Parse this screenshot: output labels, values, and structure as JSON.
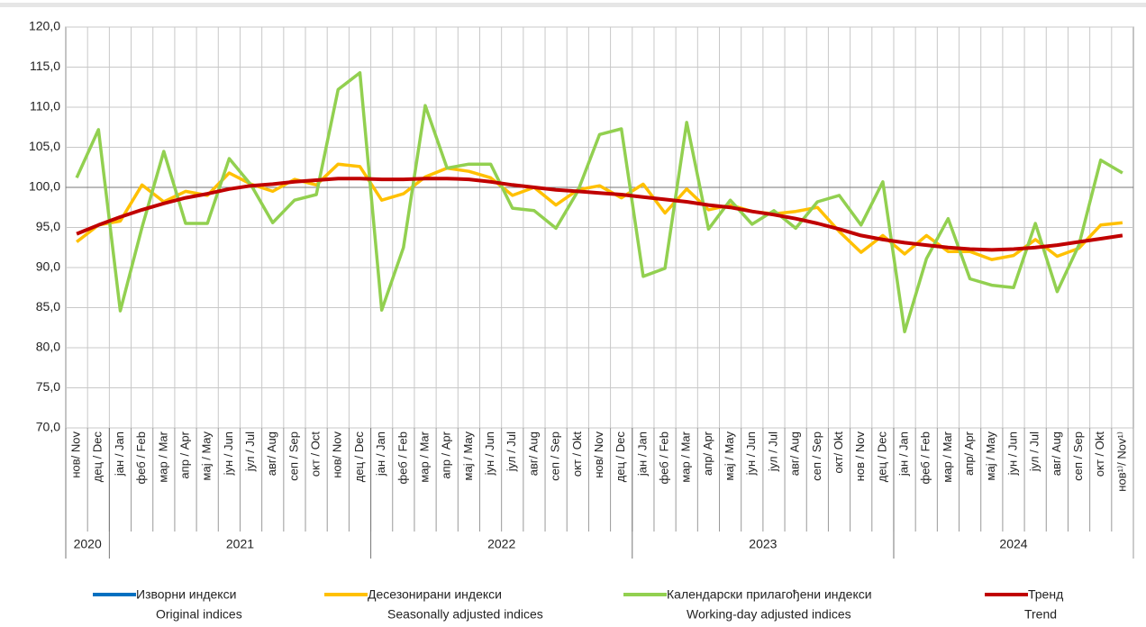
{
  "chart_data": {
    "type": "line",
    "categories": [
      "нов/ Nov",
      "дец / Dec",
      "јан / Jan",
      "феб / Feb",
      "мар / Mar",
      "апр / Apr",
      "мај / May",
      "јун / Jun",
      "јул / Jul",
      "авг/ Aug",
      "сеп / Sep",
      "окт / Oct",
      "нов/ Nov",
      "дец / Dec",
      "јан / Jan",
      "феб / Feb",
      "мар / Mar",
      "апр / Apr",
      "мај / May",
      "јун / Jun",
      "јул / Jul",
      "авг/ Aug",
      "сеп / Sep",
      "окт / Okt",
      "нов/ Nov",
      "дец / Dec",
      "јан / Jan",
      "феб / Feb",
      "мар / Mar",
      "апр/ Apr",
      "мај / May",
      "јун / Jun",
      "јул / Jul",
      "авг/ Aug",
      "сеп / Sep",
      "окт/ Okt",
      "нов / Nov",
      "дец / Dec",
      "јан / Jan",
      "феб / Feb",
      "мар / Mar",
      "апр/ Apr",
      "мај / May",
      "јун / Jun",
      "јул / Jul",
      "авг/ Aug",
      "сеп / Sep",
      "окт / Okt",
      "нов¹⁾/ Nov¹⁾"
    ],
    "years": [
      "2020",
      "2021",
      "2022",
      "2023",
      "2024"
    ],
    "ylim": [
      70,
      120
    ],
    "yticks": [
      {
        "value": 70,
        "label": "70,0"
      },
      {
        "value": 75,
        "label": "75,0"
      },
      {
        "value": 80,
        "label": "80,0"
      },
      {
        "value": 85,
        "label": "85,0"
      },
      {
        "value": 90,
        "label": "90,0"
      },
      {
        "value": 95,
        "label": "95,0"
      },
      {
        "value": 100,
        "label": "100,0"
      },
      {
        "value": 105,
        "label": "105,0"
      },
      {
        "value": 110,
        "label": "110,0"
      },
      {
        "value": 115,
        "label": "115,0"
      },
      {
        "value": 120,
        "label": "120,0"
      }
    ],
    "grid": true,
    "series": [
      {
        "name": "Изворни индекси",
        "name_en": "Original indices",
        "color": "#0070c0",
        "values": [
          null,
          null,
          null,
          null,
          null,
          null,
          null,
          null,
          null,
          null,
          null,
          null,
          null,
          null,
          null,
          null,
          null,
          null,
          null,
          null,
          null,
          null,
          null,
          null,
          null,
          null,
          null,
          null,
          null,
          null,
          null,
          null,
          null,
          null,
          null,
          null,
          null,
          null,
          null,
          null,
          null,
          null,
          null,
          null,
          null,
          null,
          null,
          null,
          null
        ]
      },
      {
        "name": "Десезонирани индекси",
        "name_en": "Seasonally adjusted indices",
        "color": "#ffc000",
        "values": [
          93.2,
          95.3,
          95.8,
          100.3,
          98.2,
          99.5,
          99.0,
          101.8,
          100.4,
          99.5,
          101.0,
          100.3,
          102.9,
          102.6,
          98.4,
          99.2,
          101.3,
          102.4,
          102.0,
          101.2,
          99.0,
          100.0,
          97.8,
          99.7,
          100.2,
          98.7,
          100.4,
          96.8,
          99.8,
          97.2,
          97.8,
          97.0,
          96.7,
          97.0,
          97.5,
          94.5,
          91.9,
          94.0,
          91.7,
          94.0,
          92.0,
          92.0,
          91.0,
          91.5,
          93.5,
          91.4,
          92.4,
          95.3,
          95.6
        ]
      },
      {
        "name": "Календарски прилагођени индекси",
        "name_en": "Working-day adjusted indices",
        "color": "#92d050",
        "values": [
          101.2,
          107.2,
          84.6,
          95.0,
          104.5,
          95.5,
          95.5,
          103.6,
          100.3,
          95.6,
          98.4,
          99.1,
          112.2,
          114.3,
          84.7,
          92.5,
          110.2,
          102.4,
          102.9,
          102.9,
          97.4,
          97.1,
          94.9,
          99.5,
          106.6,
          107.3,
          88.9,
          89.9,
          108.1,
          94.8,
          98.4,
          95.4,
          97.1,
          94.9,
          98.2,
          99.0,
          95.3,
          100.7,
          82.0,
          91.1,
          96.1,
          88.6,
          87.8,
          87.5,
          95.5,
          87.0,
          92.8,
          103.4,
          101.8
        ]
      },
      {
        "name": "Тренд",
        "name_en": "Trend",
        "color": "#c00000",
        "values": [
          94.2,
          95.3,
          96.3,
          97.2,
          98.0,
          98.7,
          99.2,
          99.8,
          100.2,
          100.4,
          100.7,
          100.9,
          101.1,
          101.1,
          101.0,
          101.0,
          101.1,
          101.1,
          101.0,
          100.7,
          100.3,
          100.0,
          99.7,
          99.5,
          99.3,
          99.1,
          98.8,
          98.5,
          98.2,
          97.8,
          97.5,
          97.0,
          96.6,
          96.1,
          95.5,
          94.8,
          94.0,
          93.5,
          93.1,
          92.8,
          92.5,
          92.3,
          92.2,
          92.3,
          92.5,
          92.8,
          93.2,
          93.6,
          94.0
        ]
      }
    ]
  }
}
